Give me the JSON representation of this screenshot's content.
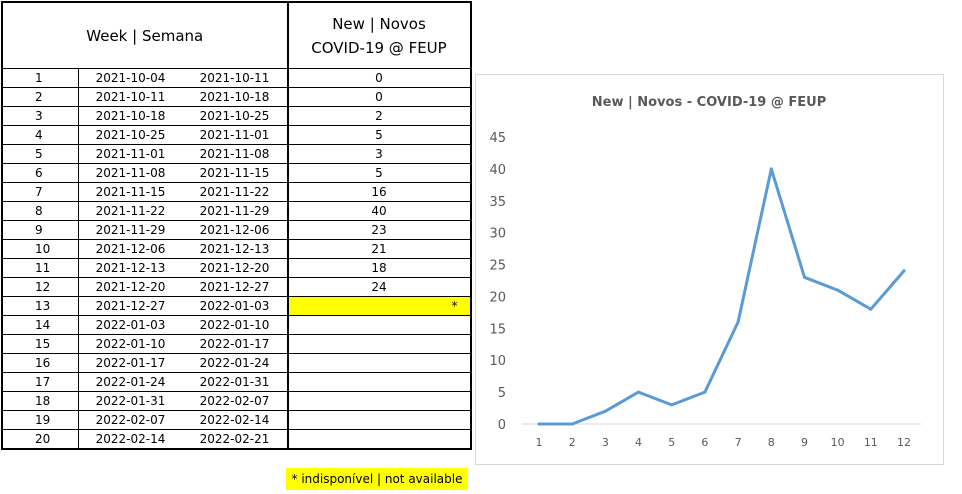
{
  "table": {
    "header_week": "Week | Semana",
    "header_new_line1": "New | Novos",
    "header_new_line2": "COVID-19 @ FEUP",
    "rows": [
      {
        "week": "1",
        "start": "2021-10-04",
        "end": "2021-10-11",
        "new": "0"
      },
      {
        "week": "2",
        "start": "2021-10-11",
        "end": "2021-10-18",
        "new": "0"
      },
      {
        "week": "3",
        "start": "2021-10-18",
        "end": "2021-10-25",
        "new": "2"
      },
      {
        "week": "4",
        "start": "2021-10-25",
        "end": "2021-11-01",
        "new": "5"
      },
      {
        "week": "5",
        "start": "2021-11-01",
        "end": "2021-11-08",
        "new": "3"
      },
      {
        "week": "6",
        "start": "2021-11-08",
        "end": "2021-11-15",
        "new": "5"
      },
      {
        "week": "7",
        "start": "2021-11-15",
        "end": "2021-11-22",
        "new": "16"
      },
      {
        "week": "8",
        "start": "2021-11-22",
        "end": "2021-11-29",
        "new": "40"
      },
      {
        "week": "9",
        "start": "2021-11-29",
        "end": "2021-12-06",
        "new": "23"
      },
      {
        "week": "10",
        "start": "2021-12-06",
        "end": "2021-12-13",
        "new": "21"
      },
      {
        "week": "11",
        "start": "2021-12-13",
        "end": "2021-12-20",
        "new": "18"
      },
      {
        "week": "12",
        "start": "2021-12-20",
        "end": "2021-12-27",
        "new": "24"
      },
      {
        "week": "13",
        "start": "2021-12-27",
        "end": "2022-01-03",
        "new": "*",
        "unavailable": true
      },
      {
        "week": "14",
        "start": "2022-01-03",
        "end": "2022-01-10",
        "new": ""
      },
      {
        "week": "15",
        "start": "2022-01-10",
        "end": "2022-01-17",
        "new": ""
      },
      {
        "week": "16",
        "start": "2022-01-17",
        "end": "2022-01-24",
        "new": ""
      },
      {
        "week": "17",
        "start": "2022-01-24",
        "end": "2022-01-31",
        "new": ""
      },
      {
        "week": "18",
        "start": "2022-01-31",
        "end": "2022-02-07",
        "new": ""
      },
      {
        "week": "19",
        "start": "2022-02-07",
        "end": "2022-02-14",
        "new": ""
      },
      {
        "week": "20",
        "start": "2022-02-14",
        "end": "2022-02-21",
        "new": ""
      }
    ],
    "note": "* indisponível | not available",
    "highlight_color": "#ffff00"
  },
  "chart_data": {
    "type": "line",
    "title": "New | Novos - COVID-19 @ FEUP",
    "x": [
      1,
      2,
      3,
      4,
      5,
      6,
      7,
      8,
      9,
      10,
      11,
      12
    ],
    "series": [
      {
        "values": [
          0,
          0,
          2,
          5,
          3,
          5,
          16,
          40,
          23,
          21,
          18,
          24
        ],
        "color": "#5b9bd5"
      }
    ],
    "ylim": [
      0,
      45
    ],
    "yticks": [
      0,
      5,
      10,
      15,
      20,
      25,
      30,
      35,
      40,
      45
    ],
    "grid": false,
    "legend": "none"
  }
}
